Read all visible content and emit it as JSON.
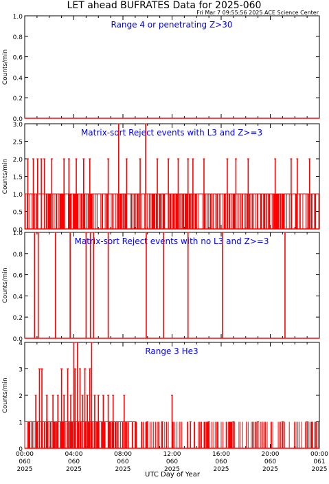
{
  "title": "LET ahead BUFRATES Data for 2025-060",
  "timestamp": "Fri Mar  7 09:55:56 2025 ACE Science Center",
  "xlabel": "UTC Day of Year",
  "colors": {
    "data": "#ff0000",
    "panel_title": "#0000ff",
    "axes": "#000000"
  },
  "chart_data": [
    {
      "type": "line",
      "title": "Range 4 or  penetrating Z>30",
      "ylabel": "Counts/min",
      "ylim": [
        0,
        1
      ],
      "yticks": [
        "0.0",
        "0.2",
        "0.4",
        "0.6",
        "0.8",
        "1.0"
      ],
      "xlim": [
        0,
        24
      ],
      "series_summary": "all values 0 for the whole day",
      "spikes": []
    },
    {
      "type": "line",
      "title": "Matrix-sort Reject events with L3 and Z>=3",
      "ylabel": "Counts/min",
      "ylim": [
        0,
        3
      ],
      "yticks": [
        "0.0",
        "0.5",
        "1.0",
        "1.5",
        "2.0",
        "2.5",
        "3.0"
      ],
      "xlim": [
        0,
        24
      ],
      "series_summary": "baseline alternating 0 and 1 counts/min across the whole day",
      "spikes": [
        {
          "x": 0.25,
          "y": 2
        },
        {
          "x": 0.7,
          "y": 2
        },
        {
          "x": 1.05,
          "y": 2
        },
        {
          "x": 1.35,
          "y": 2
        },
        {
          "x": 1.6,
          "y": 2
        },
        {
          "x": 2.2,
          "y": 2
        },
        {
          "x": 3.2,
          "y": 2
        },
        {
          "x": 3.6,
          "y": 2
        },
        {
          "x": 4.2,
          "y": 2
        },
        {
          "x": 4.8,
          "y": 2
        },
        {
          "x": 5.3,
          "y": 2
        },
        {
          "x": 6.8,
          "y": 2
        },
        {
          "x": 7.65,
          "y": 3
        },
        {
          "x": 8.3,
          "y": 2
        },
        {
          "x": 9.4,
          "y": 2
        },
        {
          "x": 9.85,
          "y": 3
        },
        {
          "x": 10.8,
          "y": 2
        },
        {
          "x": 11.7,
          "y": 2
        },
        {
          "x": 12.5,
          "y": 2
        },
        {
          "x": 13.3,
          "y": 2
        },
        {
          "x": 13.7,
          "y": 2
        },
        {
          "x": 14.6,
          "y": 2
        },
        {
          "x": 16.5,
          "y": 2
        },
        {
          "x": 17.2,
          "y": 2
        },
        {
          "x": 18.2,
          "y": 2
        },
        {
          "x": 20.4,
          "y": 2
        },
        {
          "x": 21.7,
          "y": 2
        },
        {
          "x": 22.2,
          "y": 2
        },
        {
          "x": 23.2,
          "y": 2
        }
      ]
    },
    {
      "type": "line",
      "title": "Matrix-sort Reject events with no L3 and Z>=3",
      "ylabel": "Counts/min",
      "ylim": [
        0,
        1
      ],
      "yticks": [
        "0.0",
        "0.2",
        "0.4",
        "0.6",
        "0.8",
        "1.0"
      ],
      "xlim": [
        0,
        24
      ],
      "series_summary": "mostly 0 with isolated single-minute events of 1 count/min",
      "spikes": [
        {
          "x": 0.8,
          "y": 1
        },
        {
          "x": 1.1,
          "y": 1
        },
        {
          "x": 2.5,
          "y": 1
        },
        {
          "x": 3.7,
          "y": 1
        },
        {
          "x": 5.0,
          "y": 1
        },
        {
          "x": 5.35,
          "y": 1
        },
        {
          "x": 5.6,
          "y": 1
        },
        {
          "x": 6.8,
          "y": 1
        },
        {
          "x": 9.9,
          "y": 1
        },
        {
          "x": 11.3,
          "y": 1
        },
        {
          "x": 13.3,
          "y": 1
        },
        {
          "x": 16.1,
          "y": 1
        },
        {
          "x": 21.2,
          "y": 1
        }
      ]
    },
    {
      "type": "line",
      "title": "Range 3 He3",
      "ylabel": "Counts/min",
      "ylim": [
        0,
        4
      ],
      "yticks": [
        "0",
        "1",
        "2",
        "3",
        "4"
      ],
      "xlim": [
        0,
        24
      ],
      "xticks": [
        {
          "time": "00:00",
          "doy": "060",
          "year": "2025"
        },
        {
          "time": "04:00",
          "doy": "060",
          "year": "2025"
        },
        {
          "time": "08:00",
          "doy": "060",
          "year": "2025"
        },
        {
          "time": "12:00",
          "doy": "060",
          "year": "2025"
        },
        {
          "time": "16:00",
          "doy": "060",
          "year": "2025"
        },
        {
          "time": "20:00",
          "doy": "060",
          "year": "2025"
        },
        {
          "time": "00:00",
          "doy": "061",
          "year": "2025"
        }
      ],
      "series_summary": "frequent 0-1 counts/min, with an elevated period of 2-4 counts/min around 03:00-06:00",
      "spikes": [
        {
          "x": 0.4,
          "y": 1
        },
        {
          "x": 0.9,
          "y": 2
        },
        {
          "x": 1.2,
          "y": 3
        },
        {
          "x": 1.4,
          "y": 3
        },
        {
          "x": 1.8,
          "y": 2
        },
        {
          "x": 2.3,
          "y": 2
        },
        {
          "x": 2.7,
          "y": 2
        },
        {
          "x": 3.0,
          "y": 3
        },
        {
          "x": 3.2,
          "y": 2
        },
        {
          "x": 3.5,
          "y": 3
        },
        {
          "x": 3.75,
          "y": 2
        },
        {
          "x": 4.0,
          "y": 4
        },
        {
          "x": 4.1,
          "y": 3
        },
        {
          "x": 4.3,
          "y": 4
        },
        {
          "x": 4.5,
          "y": 3
        },
        {
          "x": 4.7,
          "y": 2
        },
        {
          "x": 4.9,
          "y": 3
        },
        {
          "x": 5.1,
          "y": 2
        },
        {
          "x": 5.3,
          "y": 3
        },
        {
          "x": 5.45,
          "y": 4
        },
        {
          "x": 5.7,
          "y": 2
        },
        {
          "x": 6.0,
          "y": 2
        },
        {
          "x": 6.4,
          "y": 2
        },
        {
          "x": 6.8,
          "y": 2
        },
        {
          "x": 7.2,
          "y": 2
        },
        {
          "x": 7.6,
          "y": 1
        },
        {
          "x": 8.1,
          "y": 2
        },
        {
          "x": 9.0,
          "y": 1
        },
        {
          "x": 10.0,
          "y": 1
        },
        {
          "x": 11.2,
          "y": 1
        },
        {
          "x": 12.0,
          "y": 2
        },
        {
          "x": 13.5,
          "y": 1
        },
        {
          "x": 15.0,
          "y": 1
        },
        {
          "x": 17.0,
          "y": 1
        },
        {
          "x": 19.0,
          "y": 1
        },
        {
          "x": 21.0,
          "y": 1
        },
        {
          "x": 23.0,
          "y": 1
        }
      ]
    }
  ]
}
